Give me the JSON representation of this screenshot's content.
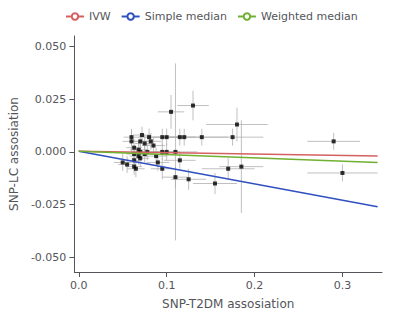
{
  "chart_data": {
    "type": "scatter",
    "xlabel": "SNP-T2DM assosiation",
    "ylabel": "SNP-LC assosiation",
    "xlim": [
      -0.005,
      0.345
    ],
    "ylim": [
      -0.057,
      0.055
    ],
    "xticks": [
      {
        "value": 0.0,
        "label": "0.0"
      },
      0.1,
      0.2,
      0.3
    ],
    "yticks": [
      {
        "value": -0.05,
        "label": "-0.050"
      },
      -0.025,
      {
        "value": 0.0,
        "label": "0.000"
      },
      0.025,
      {
        "value": 0.05,
        "label": "0.050"
      }
    ],
    "grid": false,
    "legend": "upper left",
    "series": [
      {
        "type": "scatter",
        "marker": "square",
        "color": "black",
        "x": [
          0.05,
          0.055,
          0.06,
          0.06,
          0.063,
          0.063,
          0.063,
          0.063,
          0.065,
          0.068,
          0.068,
          0.07,
          0.07,
          0.07,
          0.072,
          0.075,
          0.075,
          0.078,
          0.08,
          0.082,
          0.085,
          0.088,
          0.09,
          0.095,
          0.095,
          0.095,
          0.1,
          0.1,
          0.105,
          0.11,
          0.11,
          0.115,
          0.115,
          0.12,
          0.125,
          0.13,
          0.14,
          0.155,
          0.17,
          0.175,
          0.18,
          0.185,
          0.29,
          0.3
        ],
        "values": [
          -0.005,
          -0.006,
          0.005,
          0.007,
          0.002,
          -0.001,
          -0.004,
          -0.007,
          -0.008,
          0.001,
          -0.002,
          0.005,
          0.0,
          -0.003,
          0.008,
          0.004,
          -0.001,
          0.0,
          0.007,
          0.005,
          0.003,
          -0.002,
          -0.005,
          0.0,
          0.007,
          -0.008,
          0.007,
          0.0,
          0.019,
          -0.012,
          0.0,
          0.007,
          -0.004,
          0.007,
          -0.013,
          0.022,
          0.007,
          -0.015,
          -0.008,
          0.007,
          0.013,
          -0.007,
          0.005,
          -0.01
        ],
        "xerr": [
          0.01,
          0.01,
          0.01,
          0.009,
          0.009,
          0.009,
          0.009,
          0.009,
          0.01,
          0.01,
          0.01,
          0.01,
          0.01,
          0.01,
          0.01,
          0.011,
          0.011,
          0.012,
          0.012,
          0.012,
          0.013,
          0.013,
          0.013,
          0.015,
          0.02,
          0.013,
          0.015,
          0.015,
          0.015,
          0.015,
          0.025,
          0.018,
          0.018,
          0.02,
          0.02,
          0.018,
          0.03,
          0.025,
          0.03,
          0.035,
          0.035,
          0.025,
          0.03,
          0.04
        ],
        "yerr": [
          0.004,
          0.004,
          0.005,
          0.004,
          0.004,
          0.004,
          0.004,
          0.004,
          0.004,
          0.004,
          0.004,
          0.004,
          0.004,
          0.004,
          0.004,
          0.004,
          0.004,
          0.004,
          0.004,
          0.004,
          0.004,
          0.004,
          0.004,
          0.004,
          0.004,
          0.005,
          0.004,
          0.004,
          0.008,
          0.005,
          0.042,
          0.004,
          0.004,
          0.004,
          0.005,
          0.007,
          0.004,
          0.005,
          0.005,
          0.004,
          0.008,
          0.022,
          0.004,
          0.004
        ]
      },
      {
        "name": "IVW",
        "type": "line",
        "color": "#d46060",
        "x": [
          0.0,
          0.34
        ],
        "values": [
          0.0003,
          -0.002
        ]
      },
      {
        "name": "Simple median",
        "type": "line",
        "color": "#3050c0",
        "x": [
          0.0,
          0.34
        ],
        "values": [
          0.0003,
          -0.026
        ]
      },
      {
        "name": "Weighted median",
        "type": "line",
        "color": "#70b030",
        "x": [
          0.0,
          0.34
        ],
        "values": [
          0.0003,
          -0.005
        ]
      }
    ]
  }
}
